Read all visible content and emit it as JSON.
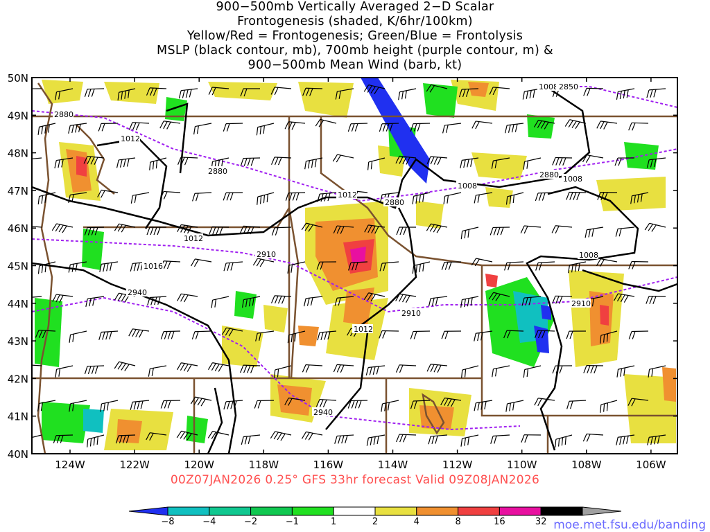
{
  "title": {
    "lines": [
      "900−500mb Vertically Averaged 2−D Scalar",
      "Frontogenesis (shaded, K/6hr/100km)",
      "Yellow/Red = Frontogenesis;  Green/Blue = Frontolysis",
      "MSLP (black contour, mb), 700mb height (purple contour, m) &",
      "900−500mb Mean Wind (barb, kt)"
    ]
  },
  "map": {
    "lat_labels": [
      "50N",
      "49N",
      "48N",
      "47N",
      "46N",
      "45N",
      "44N",
      "43N",
      "42N",
      "41N",
      "40N"
    ],
    "lon_labels": [
      "124W",
      "122W",
      "120W",
      "118W",
      "116W",
      "114W",
      "112W",
      "110W",
      "108W",
      "106W"
    ],
    "mslp_labels": [
      "1012",
      "1012",
      "1016",
      "1012",
      "1008",
      "1008",
      "1008",
      "1008"
    ],
    "height_labels": [
      "2880",
      "2880",
      "2880",
      "2910",
      "2940",
      "2910",
      "2910",
      "2940",
      "2850",
      "2880"
    ],
    "colors": {
      "mslp": "#000000",
      "height": "#a020f0",
      "border": "#7a5230",
      "barb": "#000000"
    }
  },
  "valid_time": "00Z07JAN2026 0.25° GFS 33hr forecast Valid 09Z08JAN2026",
  "colorbar": {
    "ticks": [
      "−8",
      "−4",
      "−2",
      "−1",
      "1",
      "2",
      "4",
      "8",
      "16",
      "32"
    ],
    "colors": [
      "#2030f0",
      "#10c0c0",
      "#10c890",
      "#10c850",
      "#20e020",
      "#ffffff",
      "#e8e040",
      "#f09030",
      "#f04040",
      "#e810a0",
      "#000000",
      "#a0a0a0"
    ]
  },
  "credit": "moe.met.fsu.edu/banding"
}
